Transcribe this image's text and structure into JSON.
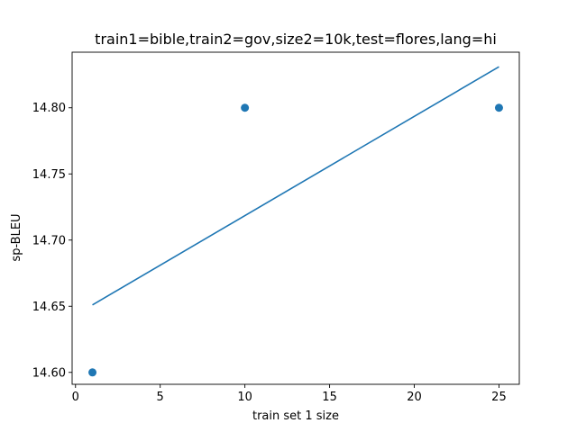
{
  "chart_data": {
    "type": "scatter",
    "title": "train1=bible,train2=gov,size2=10k,test=flores,lang=hi",
    "xlabel": "train set 1 size",
    "ylabel": "sp-BLEU",
    "xlim": [
      -0.2,
      26.2
    ],
    "ylim": [
      14.591,
      14.842
    ],
    "x_ticks": [
      0,
      5,
      10,
      15,
      20,
      25
    ],
    "y_ticks": [
      14.6,
      14.65,
      14.7,
      14.75,
      14.8
    ],
    "grid": false,
    "color": "#1f77b4",
    "series": [
      {
        "kind": "points",
        "x": [
          1,
          10,
          25
        ],
        "y": [
          14.6,
          14.8,
          14.8
        ]
      },
      {
        "kind": "line",
        "x": [
          1,
          25
        ],
        "y": [
          14.651,
          14.831
        ]
      }
    ]
  }
}
